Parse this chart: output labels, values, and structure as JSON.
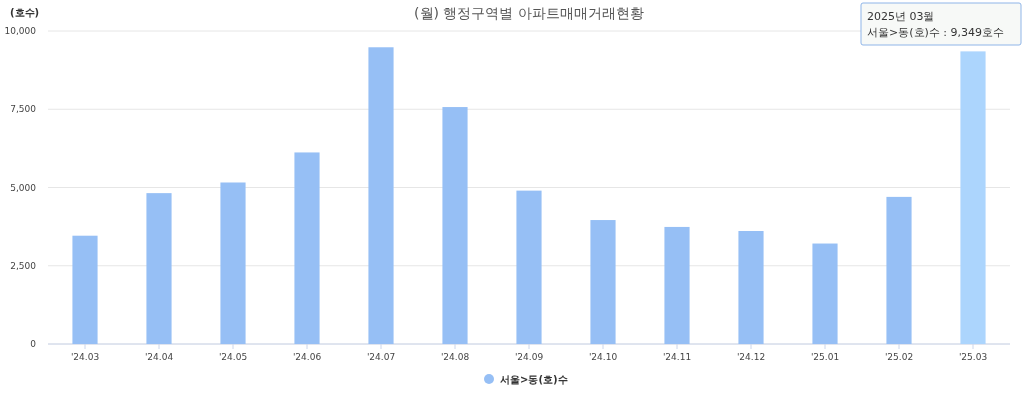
{
  "chart_data": {
    "type": "bar",
    "title": "(월) 행정구역별 아파트매매거래현황",
    "ylabel": "(호수)",
    "categories": [
      "'24.03",
      "'24.04",
      "'24.05",
      "'24.06",
      "'24.07",
      "'24.08",
      "'24.09",
      "'24.10",
      "'24.11",
      "'24.12",
      "'25.01",
      "'25.02",
      "'25.03"
    ],
    "series": [
      {
        "name": "서울>동(호)수",
        "color": "#96bff5",
        "colors": [
          "#96bff5",
          "#96bff5",
          "#96bff5",
          "#96bff5",
          "#96bff5",
          "#96bff5",
          "#96bff5",
          "#96bff5",
          "#96bff5",
          "#96bff5",
          "#96bff5",
          "#96bff5",
          "#acd5fd"
        ],
        "values": [
          3460,
          4820,
          5160,
          6120,
          9480,
          7570,
          4900,
          3960,
          3740,
          3610,
          3210,
          4700,
          9349
        ]
      }
    ],
    "ylim": [
      0,
      10000
    ],
    "yticks": [
      {
        "value": 0,
        "label": "0"
      },
      {
        "value": 2500,
        "label": "2,500"
      },
      {
        "value": 5000,
        "label": "5,000"
      },
      {
        "value": 7500,
        "label": "7,500"
      },
      {
        "value": 10000,
        "label": "10,000"
      }
    ],
    "grid": "y",
    "legend": "bottom",
    "marker": "circle",
    "annotations": [
      "2025년 03월",
      "서울>동(호)수 : 9,349호수"
    ]
  }
}
